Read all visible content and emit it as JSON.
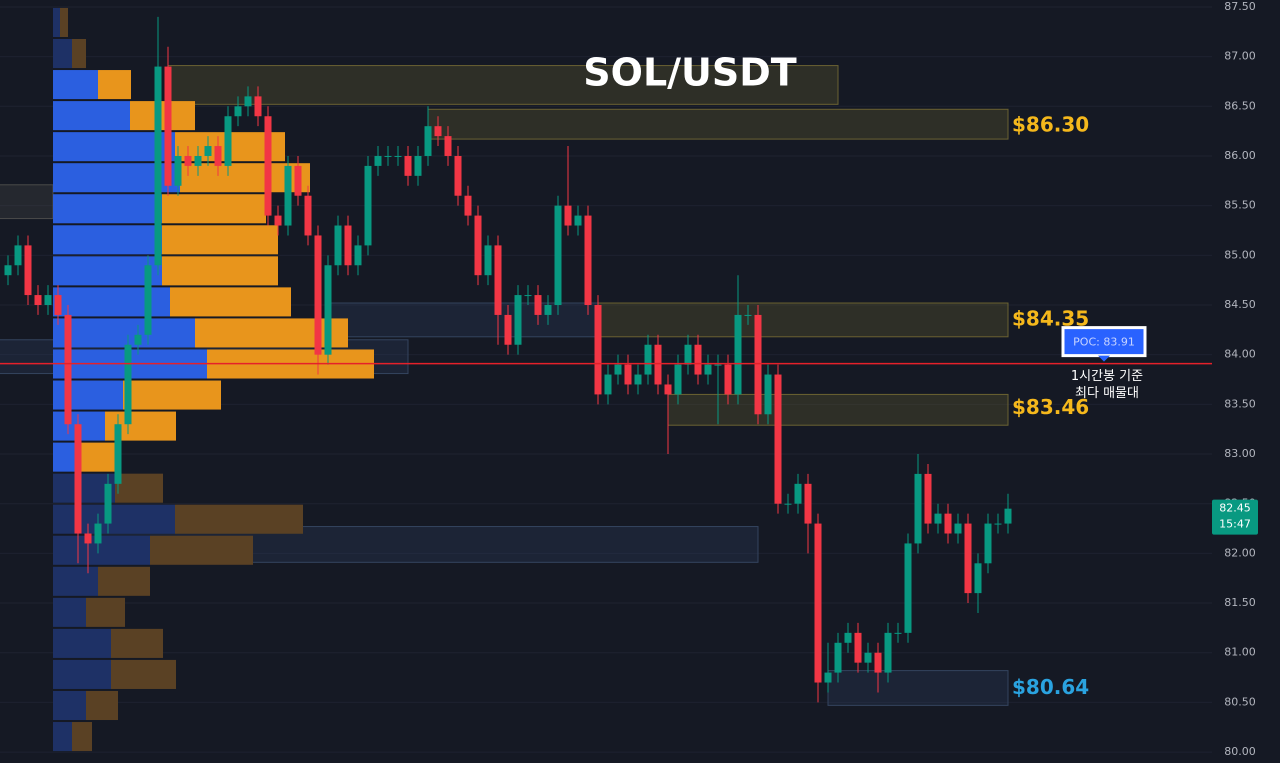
{
  "chart_data": {
    "type": "candlestick",
    "title": "SOL/USDT",
    "ylim": [
      79.89,
      87.57
    ],
    "yticks": [
      {
        "value": 80,
        "label": "80.00"
      },
      {
        "value": 80.5,
        "label": "80.50"
      },
      {
        "value": 81,
        "label": "81.00"
      },
      {
        "value": 81.5,
        "label": "81.50"
      },
      {
        "value": 82,
        "label": "82.00"
      },
      {
        "value": 82.5,
        "label": "82.50"
      },
      {
        "value": 83,
        "label": "83.00"
      },
      {
        "value": 83.5,
        "label": "83.50"
      },
      {
        "value": 84,
        "label": "84.00"
      },
      {
        "value": 84.5,
        "label": "84.50"
      },
      {
        "value": 85,
        "label": "85.00"
      },
      {
        "value": 85.5,
        "label": "85.50"
      },
      {
        "value": 86,
        "label": "86.00"
      },
      {
        "value": 86.5,
        "label": "86.50"
      },
      {
        "value": 87,
        "label": "87.00"
      },
      {
        "value": 87.5,
        "label": "87.50"
      }
    ],
    "grid": true,
    "up_color": "#089981",
    "down_color": "#f23645",
    "open": [
      84.8,
      84.9,
      85.1,
      84.6,
      84.5,
      84.6,
      84.4,
      83.3,
      82.2,
      82.1,
      82.3,
      82.7,
      83.3,
      84.1,
      84.2,
      84.9,
      86.9,
      85.7,
      86.0,
      85.9,
      86.0,
      86.1,
      85.9,
      86.4,
      86.5,
      86.6,
      86.4,
      85.4,
      85.3,
      85.9,
      85.6,
      85.2,
      84.0,
      84.9,
      85.3,
      84.9,
      85.1,
      85.9,
      86.0,
      86.0,
      86.0,
      85.8,
      86.0,
      86.3,
      86.2,
      86.0,
      85.6,
      85.4,
      84.8,
      85.1,
      84.4,
      84.1,
      84.6,
      84.6,
      84.4,
      84.5,
      85.5,
      85.3,
      85.4,
      84.5,
      83.6,
      83.8,
      83.9,
      83.7,
      83.8,
      84.1,
      83.7,
      83.6,
      83.9,
      84.1,
      83.8,
      83.9,
      83.9,
      83.6,
      84.4,
      84.4,
      83.4,
      83.8,
      82.5,
      82.5,
      82.7,
      82.3,
      80.7,
      80.8,
      81.1,
      81.2,
      80.9,
      81.0,
      80.8,
      81.2,
      81.2,
      82.1,
      82.8,
      82.3,
      82.4,
      82.2,
      82.3,
      81.6,
      81.9,
      82.3,
      82.3
    ],
    "high": [
      85.0,
      85.2,
      85.2,
      84.7,
      84.7,
      84.7,
      84.5,
      83.4,
      82.3,
      82.4,
      82.8,
      83.4,
      84.2,
      84.3,
      85.0,
      87.4,
      87.1,
      86.1,
      86.1,
      86.1,
      86.2,
      86.2,
      86.5,
      86.6,
      86.7,
      86.7,
      86.5,
      85.5,
      86.0,
      86.0,
      85.7,
      85.3,
      85.0,
      85.4,
      85.4,
      85.2,
      86.0,
      86.1,
      86.1,
      86.1,
      86.1,
      86.1,
      86.5,
      86.4,
      86.3,
      86.1,
      85.7,
      85.5,
      85.2,
      85.2,
      84.5,
      84.7,
      84.7,
      84.7,
      84.6,
      85.6,
      86.1,
      85.5,
      85.5,
      84.6,
      83.9,
      84.0,
      84.0,
      83.9,
      84.2,
      84.2,
      83.8,
      84.0,
      84.2,
      84.2,
      84.0,
      84.0,
      84.0,
      84.8,
      84.5,
      84.5,
      83.9,
      83.9,
      82.6,
      82.8,
      82.8,
      82.4,
      81.1,
      81.2,
      81.3,
      81.3,
      81.1,
      81.1,
      81.3,
      81.3,
      82.2,
      83.0,
      82.9,
      82.5,
      82.5,
      82.4,
      82.4,
      82.0,
      82.4,
      82.4,
      82.6
    ],
    "low": [
      84.7,
      84.8,
      84.5,
      84.4,
      84.4,
      84.3,
      83.2,
      81.9,
      81.8,
      82.0,
      82.2,
      82.6,
      83.2,
      84.0,
      84.1,
      84.8,
      85.6,
      85.6,
      85.8,
      85.8,
      85.9,
      85.8,
      85.8,
      86.3,
      86.4,
      86.3,
      85.3,
      85.2,
      85.2,
      85.5,
      85.1,
      83.8,
      83.9,
      84.8,
      84.8,
      84.8,
      85.0,
      85.8,
      85.9,
      85.9,
      85.7,
      85.7,
      85.9,
      86.1,
      85.9,
      85.5,
      85.3,
      84.7,
      84.7,
      84.1,
      84.0,
      84.0,
      84.5,
      84.3,
      84.3,
      84.4,
      85.2,
      85.2,
      84.4,
      83.5,
      83.5,
      83.7,
      83.6,
      83.6,
      83.7,
      83.6,
      83.0,
      83.5,
      83.8,
      83.7,
      83.7,
      83.3,
      83.5,
      83.5,
      84.3,
      83.3,
      83.3,
      82.4,
      82.4,
      82.4,
      82.0,
      80.5,
      80.6,
      80.7,
      81.0,
      80.8,
      80.8,
      80.6,
      80.7,
      81.1,
      81.1,
      82.0,
      82.2,
      82.2,
      82.1,
      82.1,
      81.5,
      81.4,
      81.8,
      82.2,
      82.2
    ],
    "close": [
      84.9,
      85.1,
      84.6,
      84.5,
      84.6,
      84.4,
      83.3,
      82.2,
      82.1,
      82.3,
      82.7,
      83.3,
      84.1,
      84.2,
      84.9,
      86.9,
      85.7,
      86.0,
      85.9,
      86.0,
      86.1,
      85.9,
      86.4,
      86.5,
      86.6,
      86.4,
      85.4,
      85.3,
      85.9,
      85.6,
      85.2,
      84.0,
      84.9,
      85.3,
      84.9,
      85.1,
      85.9,
      86.0,
      86.0,
      86.0,
      85.8,
      86.0,
      86.3,
      86.2,
      86.0,
      85.6,
      85.4,
      84.8,
      85.1,
      84.4,
      84.1,
      84.6,
      84.6,
      84.4,
      84.5,
      85.5,
      85.3,
      85.4,
      84.5,
      83.6,
      83.8,
      83.9,
      83.7,
      83.8,
      84.1,
      83.7,
      83.6,
      83.9,
      84.1,
      83.8,
      83.9,
      83.9,
      83.6,
      84.4,
      84.4,
      83.4,
      83.8,
      82.5,
      82.5,
      82.7,
      82.3,
      80.7,
      80.8,
      81.1,
      81.2,
      80.9,
      81.0,
      80.8,
      81.2,
      81.2,
      82.1,
      82.8,
      82.3,
      82.4,
      82.2,
      82.3,
      81.6,
      81.9,
      82.3,
      82.3,
      82.45
    ],
    "volume_profile": {
      "bins": [
        80.0,
        80.3125,
        80.625,
        80.9375,
        81.25,
        81.5625,
        81.875,
        82.1875,
        82.5,
        82.8125,
        83.125,
        83.4375,
        83.75,
        84.0625,
        84.375,
        84.6875,
        85.0,
        85.3125,
        85.625,
        85.9375,
        86.25,
        86.5625,
        86.875,
        87.1875,
        87.5
      ],
      "buy": [
        19,
        33,
        58,
        58,
        33,
        45,
        97,
        122,
        62,
        27,
        52,
        70,
        154,
        142,
        117,
        109,
        109,
        109,
        127,
        122,
        77,
        45,
        19,
        7
      ],
      "sell": [
        20,
        32,
        65,
        52,
        39,
        52,
        103,
        128,
        48,
        38,
        71,
        98,
        167,
        153,
        121,
        116,
        116,
        104,
        130,
        110,
        65,
        33,
        14,
        8
      ],
      "value_area": [
        82.8125,
        86.875
      ],
      "buy_color": "#2b5fe0",
      "sell_color": "#e8951c",
      "buy_color_dim": "#1e3166",
      "sell_color_dim": "#5a4124"
    },
    "zones": [
      {
        "from": 16,
        "to": 83,
        "low": 86.52,
        "high": 86.91,
        "color": "yellow"
      },
      {
        "from": 42,
        "to": 100,
        "low": 86.17,
        "high": 86.47,
        "color": "yellow"
      },
      {
        "from": 59,
        "to": 100,
        "low": 84.18,
        "high": 84.52,
        "color": "yellow"
      },
      {
        "from": 66,
        "to": 100,
        "low": 83.29,
        "high": 83.6,
        "color": "yellow"
      },
      {
        "from": 82,
        "to": 100,
        "low": 80.47,
        "high": 80.82,
        "color": "blue"
      },
      {
        "from": 8,
        "to": 75,
        "low": 81.91,
        "high": 82.27,
        "color": "blue"
      },
      {
        "from": 32,
        "to": 59,
        "low": 84.18,
        "high": 84.52,
        "color": "blue"
      },
      {
        "from": -1,
        "to": 40,
        "low": 83.81,
        "high": 84.15,
        "color": "blue"
      },
      {
        "from": -1,
        "to": 4.5,
        "low": 85.37,
        "high": 85.71,
        "color": "gray"
      }
    ],
    "levels": [
      {
        "value": 86.3,
        "label": "$86.30",
        "color": "#f5b81c"
      },
      {
        "value": 84.35,
        "label": "$84.35",
        "color": "#f5b81c"
      },
      {
        "value": 83.46,
        "label": "$83.46",
        "color": "#f5b81c"
      },
      {
        "value": 80.64,
        "label": "$80.64",
        "color": "#2aa3e0"
      }
    ],
    "poc": {
      "value": 83.91,
      "label": "POC: 83.91",
      "color": "#e5202a",
      "note": [
        "1시간봉 기준",
        "최다 매물대"
      ]
    },
    "last_price": {
      "value": 82.45,
      "label": "82.45",
      "countdown": "15:47",
      "color": "#089981"
    }
  }
}
